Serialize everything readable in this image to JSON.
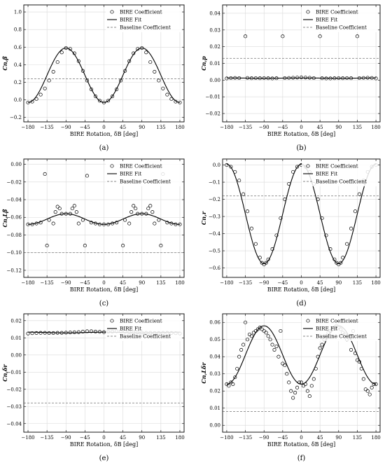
{
  "chart_data": [
    {
      "type": "scatter",
      "caption": "(a)",
      "xlabel": "BIRE Rotation, δB [deg]",
      "ylabel": "Cn,β",
      "xticks": [
        "-180",
        "-135",
        "-90",
        "-45",
        "0",
        "45",
        "90",
        "135",
        "180"
      ],
      "yticks": [
        "-0.2",
        "0.0",
        "0.2",
        "0.4",
        "0.6",
        "0.8",
        "1.0"
      ],
      "xlim": [
        -190,
        190
      ],
      "ylim": [
        -0.25,
        1.08
      ],
      "legend": [
        "BIRE Coefficient",
        "BIRE Fit",
        "Baseline Coefficient"
      ],
      "legend_position": "top-right",
      "baseline": 0.24,
      "fit": {
        "kind": "cos2",
        "mean": 0.28,
        "amp": -0.31
      },
      "points": [
        [
          -180,
          -0.03
        ],
        [
          -170,
          -0.02
        ],
        [
          -160,
          0.01
        ],
        [
          -150,
          0.06
        ],
        [
          -140,
          0.13
        ],
        [
          -130,
          0.22
        ],
        [
          -120,
          0.32
        ],
        [
          -110,
          0.43
        ],
        [
          -100,
          0.54
        ],
        [
          -90,
          0.59
        ],
        [
          -80,
          0.58
        ],
        [
          -70,
          0.53
        ],
        [
          -60,
          0.44
        ],
        [
          -50,
          0.33
        ],
        [
          -40,
          0.22
        ],
        [
          -30,
          0.12
        ],
        [
          -20,
          0.04
        ],
        [
          -10,
          -0.01
        ],
        [
          0,
          -0.03
        ],
        [
          10,
          -0.01
        ],
        [
          20,
          0.04
        ],
        [
          30,
          0.12
        ],
        [
          40,
          0.22
        ],
        [
          50,
          0.33
        ],
        [
          60,
          0.44
        ],
        [
          70,
          0.53
        ],
        [
          80,
          0.58
        ],
        [
          90,
          0.59
        ],
        [
          100,
          0.54
        ],
        [
          110,
          0.43
        ],
        [
          120,
          0.32
        ],
        [
          130,
          0.22
        ],
        [
          140,
          0.13
        ],
        [
          150,
          0.06
        ],
        [
          160,
          0.01
        ],
        [
          170,
          -0.02
        ],
        [
          180,
          -0.03
        ]
      ]
    },
    {
      "type": "scatter",
      "caption": "(b)",
      "xlabel": "BIRE Rotation, δB [deg]",
      "ylabel": "Cn,p",
      "xticks": [
        "-180",
        "-135",
        "-90",
        "-45",
        "0",
        "45",
        "90",
        "135",
        "180"
      ],
      "yticks": [
        "-0.02",
        "-0.01",
        "0.00",
        "0.01",
        "0.02",
        "0.03",
        "0.04"
      ],
      "xlim": [
        -190,
        190
      ],
      "ylim": [
        -0.025,
        0.045
      ],
      "legend": [
        "BIRE Coefficient",
        "BIRE Fit",
        "Baseline Coefficient"
      ],
      "legend_position": "top-right",
      "baseline": 0.013,
      "fit": {
        "kind": "cos2",
        "mean": 0.0012,
        "amp": 0.0001
      },
      "points": [
        [
          -180,
          0.001
        ],
        [
          -170,
          0.0012
        ],
        [
          -160,
          0.0013
        ],
        [
          -150,
          0.0012
        ],
        [
          -135,
          0.0262
        ],
        [
          -130,
          0.0013
        ],
        [
          -120,
          0.0011
        ],
        [
          -110,
          0.0012
        ],
        [
          -100,
          0.0011
        ],
        [
          -90,
          0.0012
        ],
        [
          -80,
          0.0011
        ],
        [
          -70,
          0.001
        ],
        [
          -60,
          0.0011
        ],
        [
          -45,
          0.0262
        ],
        [
          -40,
          0.0012
        ],
        [
          -30,
          0.0013
        ],
        [
          -20,
          0.0014
        ],
        [
          -10,
          0.0015
        ],
        [
          0,
          0.0016
        ],
        [
          10,
          0.0015
        ],
        [
          20,
          0.0014
        ],
        [
          30,
          0.0012
        ],
        [
          45,
          0.0262
        ],
        [
          50,
          0.0011
        ],
        [
          60,
          0.001
        ],
        [
          70,
          0.001
        ],
        [
          80,
          0.0011
        ],
        [
          90,
          0.0012
        ],
        [
          100,
          0.0011
        ],
        [
          110,
          0.0012
        ],
        [
          120,
          0.0011
        ],
        [
          135,
          0.0262
        ],
        [
          140,
          0.0012
        ],
        [
          150,
          0.0013
        ],
        [
          160,
          0.0014
        ],
        [
          170,
          0.0013
        ],
        [
          180,
          0.001
        ]
      ]
    },
    {
      "type": "scatter",
      "caption": "(c)",
      "xlabel": "BIRE Rotation, δB [deg]",
      "ylabel": "Cn,Lβ",
      "xticks": [
        "-180",
        "-135",
        "-90",
        "-45",
        "0",
        "45",
        "90",
        "135",
        "180"
      ],
      "yticks": [
        "-0.12",
        "-0.10",
        "-0.08",
        "-0.06",
        "-0.04",
        "-0.02",
        "0.00"
      ],
      "xlim": [
        -190,
        190
      ],
      "ylim": [
        -0.128,
        0.006
      ],
      "legend": [
        "BIRE Coefficient",
        "BIRE Fit",
        "Baseline Coefficient"
      ],
      "legend_position": "top-right",
      "baseline": -0.1,
      "fit": {
        "kind": "cos2",
        "mean": -0.062,
        "amp": -0.006
      },
      "points": [
        [
          -180,
          -0.068
        ],
        [
          -170,
          -0.068
        ],
        [
          -160,
          -0.067
        ],
        [
          -150,
          -0.066
        ],
        [
          -140,
          -0.011
        ],
        [
          -135,
          -0.092
        ],
        [
          -130,
          -0.063
        ],
        [
          -120,
          -0.067
        ],
        [
          -115,
          -0.054
        ],
        [
          -110,
          -0.048
        ],
        [
          -105,
          -0.05
        ],
        [
          -100,
          -0.056
        ],
        [
          -90,
          -0.056
        ],
        [
          -80,
          -0.056
        ],
        [
          -75,
          -0.05
        ],
        [
          -70,
          -0.047
        ],
        [
          -65,
          -0.054
        ],
        [
          -60,
          -0.067
        ],
        [
          -50,
          -0.063
        ],
        [
          -45,
          -0.092
        ],
        [
          -40,
          -0.013
        ],
        [
          -30,
          -0.066
        ],
        [
          -20,
          -0.067
        ],
        [
          -10,
          -0.068
        ],
        [
          0,
          -0.068
        ],
        [
          10,
          -0.068
        ],
        [
          20,
          -0.067
        ],
        [
          30,
          -0.066
        ],
        [
          45,
          -0.092
        ],
        [
          50,
          -0.063
        ],
        [
          60,
          -0.067
        ],
        [
          65,
          -0.054
        ],
        [
          70,
          -0.047
        ],
        [
          75,
          -0.05
        ],
        [
          80,
          -0.056
        ],
        [
          90,
          -0.056
        ],
        [
          100,
          -0.056
        ],
        [
          105,
          -0.05
        ],
        [
          110,
          -0.047
        ],
        [
          115,
          -0.054
        ],
        [
          120,
          -0.067
        ],
        [
          130,
          -0.063
        ],
        [
          135,
          -0.092
        ],
        [
          140,
          -0.011
        ],
        [
          150,
          -0.066
        ],
        [
          160,
          -0.067
        ],
        [
          170,
          -0.068
        ],
        [
          180,
          -0.068
        ]
      ]
    },
    {
      "type": "scatter",
      "caption": "(d)",
      "xlabel": "BIRE Rotation, δB [deg]",
      "ylabel": "Cn,r",
      "xticks": [
        "-180",
        "-135",
        "-90",
        "-45",
        "0",
        "45",
        "90",
        "135",
        "180"
      ],
      "yticks": [
        "-0.6",
        "-0.5",
        "-0.4",
        "-0.3",
        "-0.2",
        "-0.1",
        "0.0"
      ],
      "xlim": [
        -190,
        190
      ],
      "ylim": [
        -0.655,
        0.035
      ],
      "legend": [
        "BIRE Coefficient",
        "BIRE Fit",
        "Baseline Coefficient"
      ],
      "legend_position": "top-right",
      "baseline": -0.18,
      "fit": {
        "kind": "cos2",
        "mean": -0.285,
        "amp": 0.29
      },
      "points": [
        [
          -180,
          0.0
        ],
        [
          -170,
          -0.01
        ],
        [
          -160,
          -0.04
        ],
        [
          -150,
          -0.09
        ],
        [
          -140,
          -0.17
        ],
        [
          -130,
          -0.27
        ],
        [
          -120,
          -0.37
        ],
        [
          -110,
          -0.46
        ],
        [
          -100,
          -0.54
        ],
        [
          -95,
          -0.57
        ],
        [
          -90,
          -0.58
        ],
        [
          -85,
          -0.57
        ],
        [
          -80,
          -0.55
        ],
        [
          -70,
          -0.49
        ],
        [
          -60,
          -0.41
        ],
        [
          -50,
          -0.31
        ],
        [
          -40,
          -0.2
        ],
        [
          -30,
          -0.11
        ],
        [
          -20,
          -0.04
        ],
        [
          -10,
          -0.01
        ],
        [
          0,
          0.0
        ],
        [
          10,
          -0.01
        ],
        [
          20,
          -0.04
        ],
        [
          30,
          -0.11
        ],
        [
          40,
          -0.2
        ],
        [
          50,
          -0.31
        ],
        [
          60,
          -0.41
        ],
        [
          70,
          -0.49
        ],
        [
          80,
          -0.55
        ],
        [
          85,
          -0.57
        ],
        [
          90,
          -0.58
        ],
        [
          95,
          -0.57
        ],
        [
          100,
          -0.54
        ],
        [
          110,
          -0.46
        ],
        [
          120,
          -0.37
        ],
        [
          130,
          -0.27
        ],
        [
          140,
          -0.17
        ],
        [
          150,
          -0.09
        ],
        [
          160,
          -0.04
        ],
        [
          170,
          -0.01
        ],
        [
          180,
          0.0
        ]
      ]
    },
    {
      "type": "scatter",
      "caption": "(e)",
      "xlabel": "BIRE Rotation, δB [deg]",
      "ylabel": "Cn,δr",
      "xticks": [
        "-180",
        "-135",
        "-90",
        "-45",
        "0",
        "45",
        "90",
        "135",
        "180"
      ],
      "yticks": [
        "-0.04",
        "-0.03",
        "-0.02",
        "-0.01",
        "0.00",
        "0.01",
        "0.02"
      ],
      "xlim": [
        -190,
        190
      ],
      "ylim": [
        -0.045,
        0.024
      ],
      "legend": [
        "BIRE Coefficient",
        "BIRE Fit",
        "Baseline Coefficient"
      ],
      "legend_position": "top-right",
      "baseline": -0.028,
      "fit": {
        "kind": "cos2",
        "mean": 0.0131,
        "amp": 0.0002
      },
      "points": [
        [
          -180,
          0.0125
        ],
        [
          -170,
          0.0127
        ],
        [
          -160,
          0.0128
        ],
        [
          -150,
          0.0129
        ],
        [
          -140,
          0.0129
        ],
        [
          -130,
          0.0128
        ],
        [
          -120,
          0.0128
        ],
        [
          -110,
          0.0129
        ],
        [
          -100,
          0.0129
        ],
        [
          -90,
          0.013
        ],
        [
          -80,
          0.0131
        ],
        [
          -70,
          0.0132
        ],
        [
          -60,
          0.0133
        ],
        [
          -50,
          0.0136
        ],
        [
          -40,
          0.0138
        ],
        [
          -30,
          0.0138
        ],
        [
          -20,
          0.0136
        ],
        [
          -10,
          0.0135
        ],
        [
          0,
          0.0133
        ],
        [
          10,
          0.0135
        ],
        [
          20,
          0.0136
        ],
        [
          30,
          0.0138
        ],
        [
          40,
          0.0138
        ],
        [
          50,
          0.0136
        ],
        [
          60,
          0.0133
        ],
        [
          70,
          0.0132
        ],
        [
          80,
          0.0131
        ],
        [
          90,
          0.013
        ],
        [
          100,
          0.0129
        ],
        [
          110,
          0.0129
        ],
        [
          120,
          0.0128
        ],
        [
          130,
          0.0128
        ],
        [
          140,
          0.0129
        ],
        [
          150,
          0.0129
        ],
        [
          160,
          0.0128
        ],
        [
          170,
          0.0127
        ],
        [
          180,
          0.0125
        ]
      ]
    },
    {
      "type": "scatter",
      "caption": "(f)",
      "xlabel": "BIRE Rotation, δB [deg]",
      "ylabel": "Cn,Lδr",
      "xticks": [
        "-180",
        "-135",
        "-90",
        "-45",
        "0",
        "45",
        "90",
        "135",
        "180"
      ],
      "yticks": [
        "0.00",
        "0.01",
        "0.02",
        "0.03",
        "0.04",
        "0.05",
        "0.06"
      ],
      "xlim": [
        -190,
        190
      ],
      "ylim": [
        -0.004,
        0.065
      ],
      "legend": [
        "BIRE Coefficient",
        "BIRE Fit",
        "Baseline Coefficient"
      ],
      "legend_position": "top-right",
      "baseline": 0.008,
      "fit": {
        "kind": "cos2",
        "mean": 0.041,
        "amp": -0.017
      },
      "points": [
        [
          -180,
          0.024
        ],
        [
          -175,
          0.023
        ],
        [
          -170,
          0.025
        ],
        [
          -165,
          0.024
        ],
        [
          -160,
          0.028
        ],
        [
          -155,
          0.033
        ],
        [
          -150,
          0.04
        ],
        [
          -145,
          0.044
        ],
        [
          -140,
          0.047
        ],
        [
          -135,
          0.06
        ],
        [
          -130,
          0.05
        ],
        [
          -125,
          0.053
        ],
        [
          -120,
          0.052
        ],
        [
          -115,
          0.054
        ],
        [
          -110,
          0.055
        ],
        [
          -105,
          0.056
        ],
        [
          -100,
          0.057
        ],
        [
          -95,
          0.056
        ],
        [
          -90,
          0.055
        ],
        [
          -85,
          0.054
        ],
        [
          -80,
          0.052
        ],
        [
          -75,
          0.05
        ],
        [
          -70,
          0.047
        ],
        [
          -65,
          0.044
        ],
        [
          -60,
          0.046
        ],
        [
          -55,
          0.04
        ],
        [
          -50,
          0.055
        ],
        [
          -45,
          0.036
        ],
        [
          -40,
          0.035
        ],
        [
          -35,
          0.03
        ],
        [
          -30,
          0.025
        ],
        [
          -25,
          0.02
        ],
        [
          -20,
          0.016
        ],
        [
          -15,
          0.019
        ],
        [
          -10,
          0.022
        ],
        [
          -5,
          0.025
        ],
        [
          0,
          0.025
        ],
        [
          5,
          0.023
        ],
        [
          10,
          0.024
        ],
        [
          15,
          0.02
        ],
        [
          20,
          0.017
        ],
        [
          25,
          0.023
        ],
        [
          30,
          0.027
        ],
        [
          35,
          0.033
        ],
        [
          40,
          0.04
        ],
        [
          45,
          0.045
        ],
        [
          50,
          0.047
        ],
        [
          55,
          0.05
        ],
        [
          60,
          0.052
        ],
        [
          65,
          0.054
        ],
        [
          70,
          0.055
        ],
        [
          75,
          0.056
        ],
        [
          80,
          0.057
        ],
        [
          85,
          0.058
        ],
        [
          90,
          0.057
        ],
        [
          95,
          0.056
        ],
        [
          100,
          0.054
        ],
        [
          105,
          0.053
        ],
        [
          110,
          0.05
        ],
        [
          120,
          0.044
        ],
        [
          125,
          0.055
        ],
        [
          130,
          0.042
        ],
        [
          135,
          0.038
        ],
        [
          140,
          0.037
        ],
        [
          145,
          0.033
        ],
        [
          150,
          0.027
        ],
        [
          155,
          0.021
        ],
        [
          160,
          0.02
        ],
        [
          165,
          0.018
        ],
        [
          170,
          0.022
        ],
        [
          175,
          0.024
        ],
        [
          180,
          0.024
        ]
      ]
    }
  ]
}
